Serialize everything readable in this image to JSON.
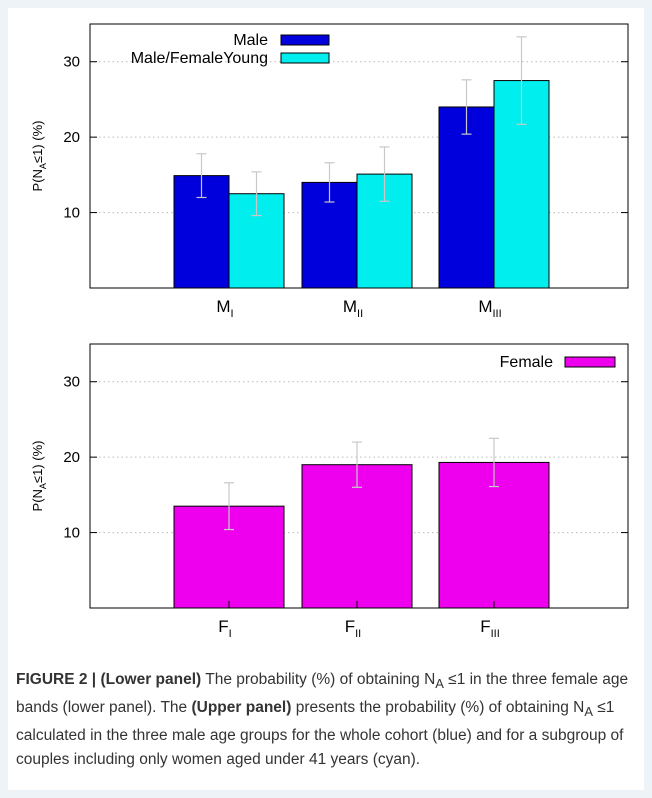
{
  "chart_data": [
    {
      "type": "bar",
      "panel": "Upper panel",
      "ylabel": "P(N_A≤1) (%)",
      "ylim": [
        0,
        35
      ],
      "yticks": [
        10,
        20,
        30
      ],
      "categories": [
        {
          "base": "M",
          "sub": "I"
        },
        {
          "base": "M",
          "sub": "II"
        },
        {
          "base": "M",
          "sub": "III"
        }
      ],
      "series": [
        {
          "name": "Male",
          "color": "#0000dd",
          "values": [
            14.9,
            14.0,
            24.0
          ],
          "err_high": [
            17.8,
            16.6,
            27.6
          ],
          "err_low": [
            12.0,
            11.4,
            20.4
          ]
        },
        {
          "name": "Male/FemaleYoung",
          "color": "#00eeee",
          "values": [
            12.5,
            15.1,
            27.5
          ],
          "err_high": [
            15.4,
            18.7,
            33.3
          ],
          "err_low": [
            9.6,
            11.5,
            21.7
          ]
        }
      ],
      "legend_position": "top-left",
      "grid": true
    },
    {
      "type": "bar",
      "panel": "Lower panel",
      "ylabel": "P(N_A≤1) (%)",
      "ylim": [
        0,
        35
      ],
      "yticks": [
        10,
        20,
        30
      ],
      "categories": [
        {
          "base": "F",
          "sub": "I"
        },
        {
          "base": "F",
          "sub": "II"
        },
        {
          "base": "F",
          "sub": "III"
        }
      ],
      "series": [
        {
          "name": "Female",
          "color": "#ee00ee",
          "values": [
            13.5,
            19.0,
            19.3
          ],
          "err_high": [
            16.6,
            22.0,
            22.5
          ],
          "err_low": [
            10.4,
            16.0,
            16.1
          ]
        }
      ],
      "legend_position": "top-right",
      "grid": true
    }
  ],
  "caption": {
    "figure_label": "FIGURE 2 | ",
    "lower_panel_label": "(Lower panel)",
    "part1": " The probability (%) of obtaining N",
    "sub": "A",
    "part2": " ≤1 in the three female age bands (lower panel). The ",
    "upper_panel_label": "(Upper panel)",
    "part3": " presents the probability (%) of obtaining N",
    "part4": " ≤1 calculated in the three male age groups for the whole cohort (blue) and for a subgroup of couples including only women aged under 41 years (cyan)."
  }
}
